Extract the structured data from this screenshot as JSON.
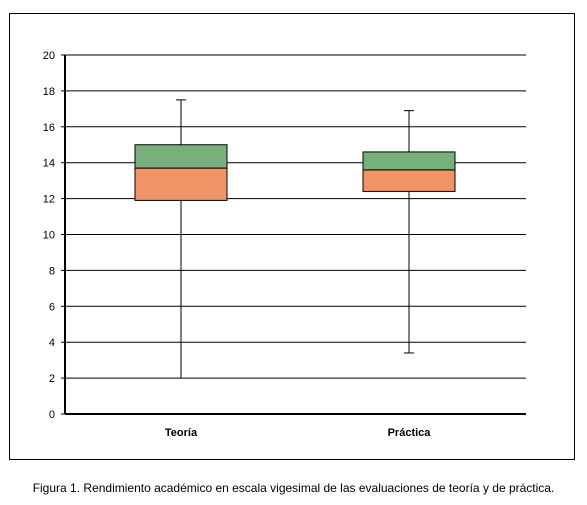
{
  "chart_data": {
    "type": "boxplot",
    "categories": [
      "Teoría",
      "Práctica"
    ],
    "boxes": [
      {
        "category": "Teoría",
        "min": 2.0,
        "q1": 11.9,
        "median": 13.7,
        "q3": 15.0,
        "max": 17.5
      },
      {
        "category": "Práctica",
        "min": 3.4,
        "q1": 12.4,
        "median": 13.6,
        "q3": 14.6,
        "max": 16.9
      }
    ],
    "ylim": [
      0,
      20
    ],
    "yticks": [
      0,
      2,
      4,
      6,
      8,
      10,
      12,
      14,
      16,
      18,
      20
    ],
    "grid": true,
    "colors": {
      "upper_box": "#77b07a",
      "lower_box": "#f29366",
      "lines": "#000000"
    }
  },
  "caption": "Figura 1. Rendimiento académico en escala vigesimal de las evaluaciones de teoría y de práctica."
}
